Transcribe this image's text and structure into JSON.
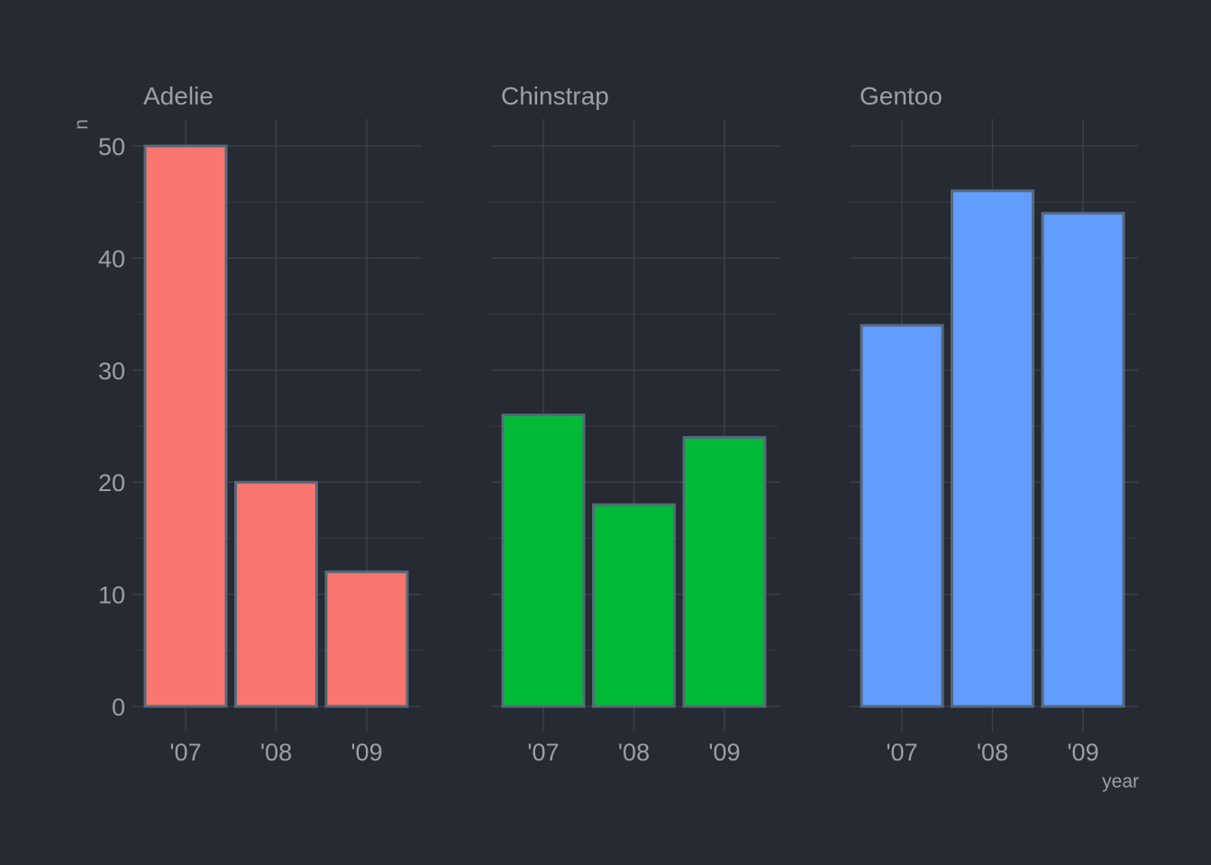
{
  "chart_data": {
    "type": "bar",
    "categories": [
      "'07",
      "'08",
      "'09"
    ],
    "xlabel": "year",
    "ylabel": "n",
    "ylim": [
      0,
      50
    ],
    "yticks": [
      0,
      10,
      20,
      30,
      40,
      50
    ],
    "grid": true,
    "facets": [
      {
        "name": "Adelie",
        "values": [
          50,
          20,
          12
        ],
        "color": "#f8766d"
      },
      {
        "name": "Chinstrap",
        "values": [
          26,
          18,
          24
        ],
        "color": "#00ba38"
      },
      {
        "name": "Gentoo",
        "values": [
          34,
          46,
          44
        ],
        "color": "#619cff"
      }
    ]
  }
}
